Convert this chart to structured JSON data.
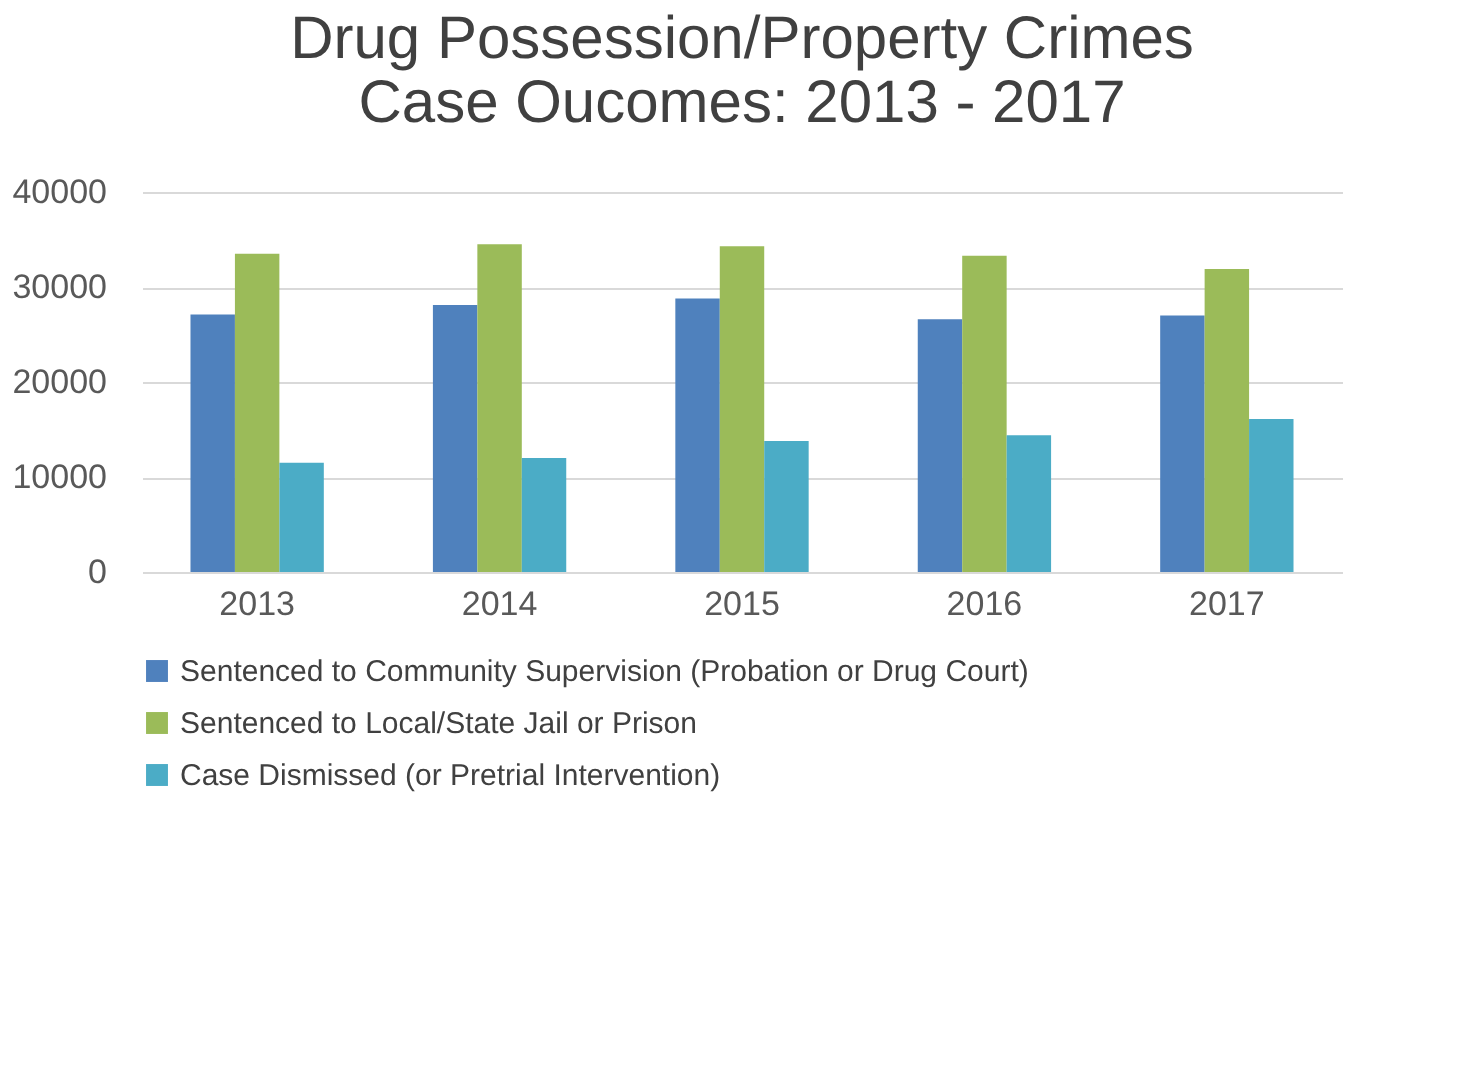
{
  "chart_data": {
    "type": "bar",
    "title": [
      "Drug Possession/Property Crimes",
      "Case Oucomes: 2013 - 2017"
    ],
    "categories": [
      "2013",
      "2014",
      "2015",
      "2016",
      "2017"
    ],
    "series": [
      {
        "name": "Sentenced to Community Supervision (Probation or Drug Court)",
        "color": "#4f81bd",
        "values": [
          27100,
          28100,
          28800,
          26600,
          27000
        ]
      },
      {
        "name": "Sentenced to Local/State Jail or Prison",
        "color": "#9bbb59",
        "values": [
          33500,
          34500,
          34300,
          33300,
          31900
        ]
      },
      {
        "name": "Case Dismissed (or Pretrial Intervention)",
        "color": "#4bacc6",
        "values": [
          11500,
          12000,
          13800,
          14400,
          16100
        ]
      }
    ],
    "ylim": [
      0,
      40000
    ],
    "yticks": [
      0,
      10000,
      20000,
      30000,
      40000
    ],
    "grid": "y",
    "legend": "bottom"
  }
}
